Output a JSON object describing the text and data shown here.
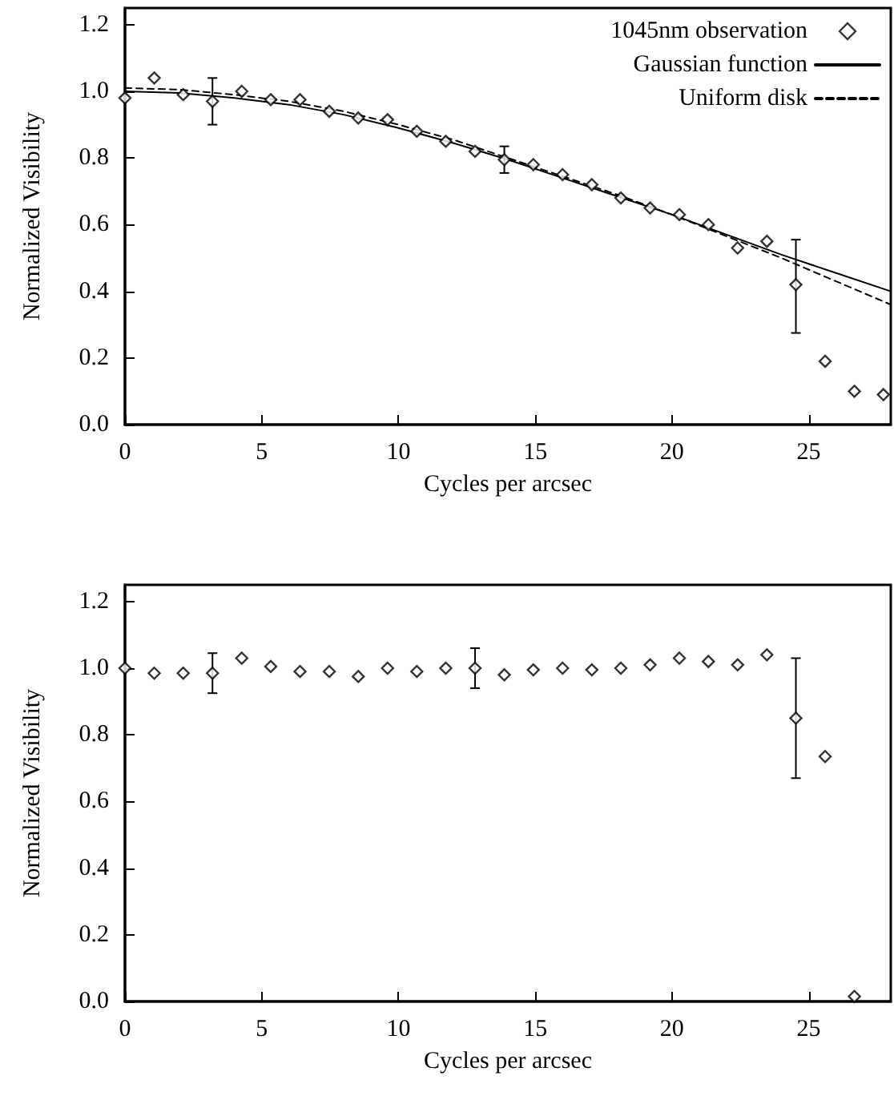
{
  "chart_data": [
    {
      "type": "scatter",
      "xlabel": "Cycles per arcsec",
      "ylabel": "Normalized Visibility",
      "xlim": [
        0,
        28
      ],
      "xticks": [
        0,
        5,
        10,
        15,
        20,
        25
      ],
      "ylim": [
        0,
        1.25
      ],
      "yticks": [
        {
          "value": 0,
          "label": "0.0"
        },
        {
          "value": 0.2,
          "label": "0.2"
        },
        {
          "value": 0.4,
          "label": "0.4"
        },
        {
          "value": 0.6,
          "label": "0.6"
        },
        {
          "value": 0.8,
          "label": "0.8"
        },
        {
          "value": 1.0,
          "label": "1.0"
        },
        {
          "value": 1.2,
          "label": "1.2"
        }
      ],
      "grid": false,
      "legend": "top right",
      "series": [
        {
          "name": "1045nm observation",
          "marker": "diamond",
          "color": "#000000",
          "x": [
            0,
            1.07,
            2.13,
            3.2,
            4.27,
            5.33,
            6.4,
            7.47,
            8.53,
            9.6,
            10.67,
            11.73,
            12.8,
            13.87,
            14.93,
            16,
            17.07,
            18.13,
            19.2,
            20.27,
            21.33,
            22.4,
            23.47,
            24.53,
            25.6,
            26.67,
            27.73
          ],
          "values": [
            0.98,
            1.04,
            0.99,
            0.97,
            1.0,
            0.975,
            0.975,
            0.94,
            0.92,
            0.915,
            0.88,
            0.85,
            0.82,
            0.795,
            0.78,
            0.75,
            0.72,
            0.68,
            0.65,
            0.63,
            0.6,
            0.53,
            0.55,
            0.42,
            0.19,
            0.1,
            0.09
          ],
          "errors": [
            null,
            null,
            null,
            [
              0.9,
              1.04
            ],
            null,
            null,
            null,
            null,
            null,
            null,
            null,
            null,
            null,
            [
              0.755,
              0.835
            ],
            null,
            null,
            null,
            null,
            null,
            null,
            null,
            null,
            null,
            [
              0.275,
              0.555
            ],
            null,
            null,
            null
          ]
        },
        {
          "name": "Gaussian function",
          "type": "line",
          "line_style": "solid",
          "color": "#000000",
          "x": [
            0,
            2,
            4,
            6,
            8,
            10,
            12,
            14,
            16,
            18,
            20,
            22,
            24,
            26,
            28
          ],
          "values": [
            1.0,
            0.995,
            0.98,
            0.96,
            0.93,
            0.89,
            0.845,
            0.795,
            0.74,
            0.685,
            0.63,
            0.57,
            0.51,
            0.455,
            0.4
          ]
        },
        {
          "name": "Uniform disk",
          "type": "line",
          "line_style": "dashed",
          "color": "#000000",
          "x": [
            0,
            2,
            4,
            6,
            8,
            10,
            12,
            14,
            16,
            18,
            20,
            22,
            24,
            26,
            28
          ],
          "values": [
            1.01,
            1.005,
            0.99,
            0.97,
            0.94,
            0.9,
            0.855,
            0.8,
            0.745,
            0.69,
            0.63,
            0.565,
            0.5,
            0.43,
            0.36
          ]
        }
      ]
    },
    {
      "type": "scatter",
      "xlabel": "Cycles per arcsec",
      "ylabel": "Normalized Visibility",
      "xlim": [
        0,
        28
      ],
      "xticks": [
        0,
        5,
        10,
        15,
        20,
        25
      ],
      "ylim": [
        0,
        1.25
      ],
      "yticks": [
        {
          "value": 0,
          "label": "0.0"
        },
        {
          "value": 0.2,
          "label": "0.2"
        },
        {
          "value": 0.4,
          "label": "0.4"
        },
        {
          "value": 0.6,
          "label": "0.6"
        },
        {
          "value": 0.8,
          "label": "0.8"
        },
        {
          "value": 1.0,
          "label": "1.0"
        },
        {
          "value": 1.2,
          "label": "1.2"
        }
      ],
      "grid": false,
      "series": [
        {
          "marker": "diamond",
          "color": "#000000",
          "x": [
            0,
            1.07,
            2.13,
            3.2,
            4.27,
            5.33,
            6.4,
            7.47,
            8.53,
            9.6,
            10.67,
            11.73,
            12.8,
            13.87,
            14.93,
            16,
            17.07,
            18.13,
            19.2,
            20.27,
            21.33,
            22.4,
            23.47,
            24.53,
            25.6,
            26.67
          ],
          "values": [
            1.0,
            0.985,
            0.985,
            0.985,
            1.03,
            1.005,
            0.99,
            0.99,
            0.975,
            1.0,
            0.99,
            1.0,
            1.0,
            0.98,
            0.995,
            1.0,
            0.995,
            1.0,
            1.01,
            1.03,
            1.02,
            1.01,
            1.04,
            0.85,
            0.735,
            0.015
          ],
          "errors": [
            null,
            null,
            null,
            [
              0.925,
              1.045
            ],
            null,
            null,
            null,
            null,
            null,
            null,
            null,
            null,
            [
              0.94,
              1.06
            ],
            null,
            null,
            null,
            null,
            null,
            null,
            null,
            null,
            null,
            null,
            [
              0.67,
              1.03
            ],
            null,
            null
          ]
        }
      ]
    }
  ]
}
